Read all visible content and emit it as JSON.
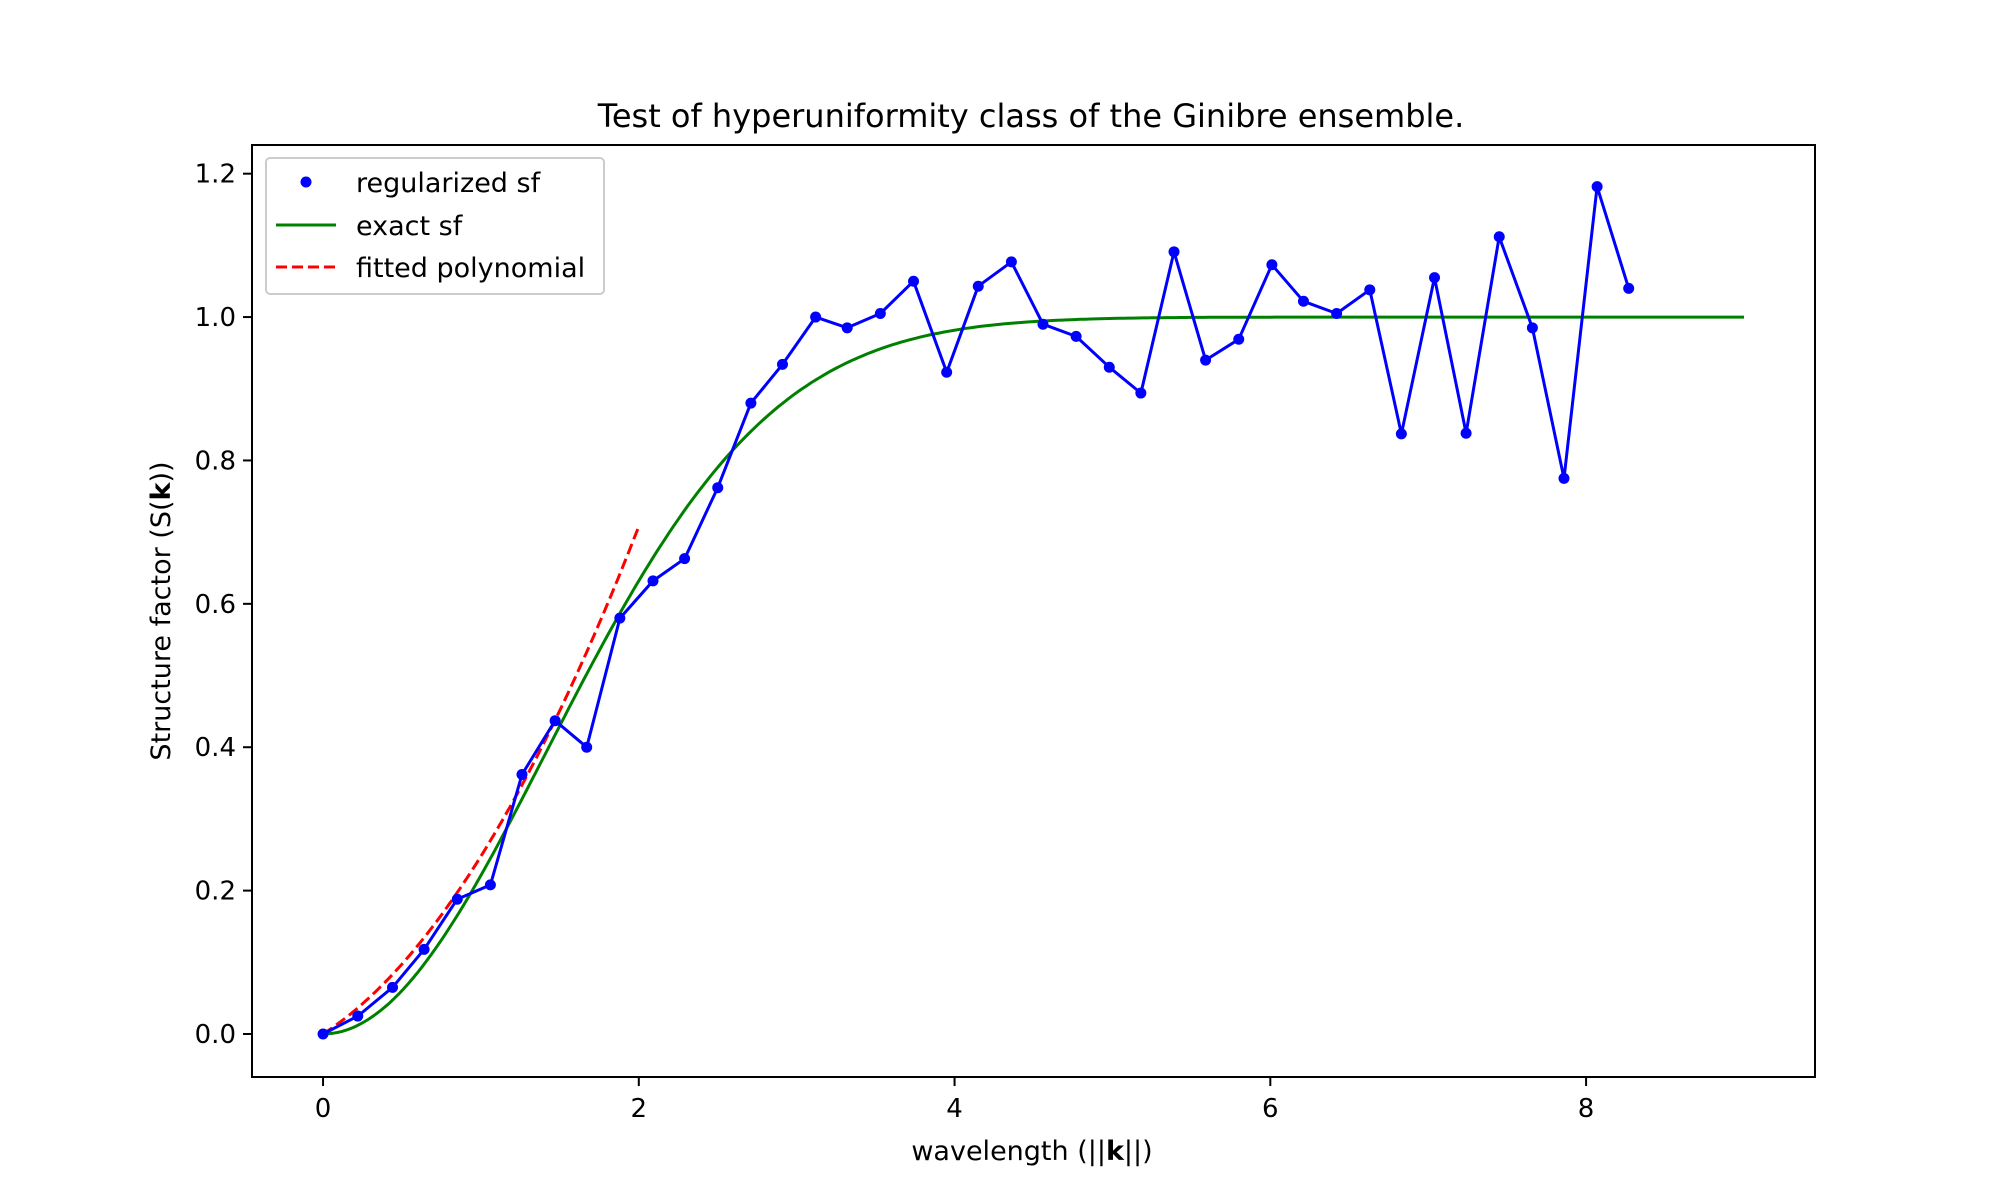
{
  "chart_data": {
    "type": "line",
    "title": "Test of hyperuniformity class of the Ginibre ensemble.",
    "xlabel": {
      "prefix": "wavelength (||",
      "bold": "k",
      "suffix": "||)"
    },
    "ylabel": {
      "prefix": "Structure factor (S(",
      "bold": "k",
      "suffix": "))"
    },
    "xlim": [
      -0.45,
      9.45
    ],
    "ylim": [
      -0.06,
      1.24
    ],
    "xticks": [
      0,
      2,
      4,
      6,
      8
    ],
    "xtick_labels": [
      "0",
      "2",
      "4",
      "6",
      "8"
    ],
    "yticks": [
      0.0,
      0.2,
      0.4,
      0.6,
      0.8,
      1.0,
      1.2
    ],
    "ytick_labels": [
      "0.0",
      "0.2",
      "0.4",
      "0.6",
      "0.8",
      "1.0",
      "1.2"
    ],
    "grid": false,
    "legend": {
      "placement": "top-left",
      "entries": [
        {
          "label": "regularized sf",
          "style": "marker",
          "color": "#0000ff"
        },
        {
          "label": "exact sf",
          "style": "solid",
          "color": "#008000"
        },
        {
          "label": "fitted polynomial",
          "style": "dashed",
          "color": "#ff0000"
        }
      ]
    },
    "series": [
      {
        "name": "regularized sf",
        "color": "#0000ff",
        "style": "line+marker",
        "x": [
          0.0,
          0.22,
          0.44,
          0.64,
          0.85,
          1.06,
          1.26,
          1.47,
          1.67,
          1.88,
          2.09,
          2.29,
          2.5,
          2.71,
          2.91,
          3.12,
          3.32,
          3.53,
          3.74,
          3.95,
          4.15,
          4.36,
          4.56,
          4.77,
          4.98,
          5.18,
          5.39,
          5.59,
          5.8,
          6.01,
          6.21,
          6.42,
          6.63,
          6.83,
          7.04,
          7.24,
          7.45,
          7.66,
          7.86,
          8.07,
          8.27
        ],
        "y": [
          0.0,
          0.025,
          0.065,
          0.118,
          0.188,
          0.208,
          0.362,
          0.437,
          0.4,
          0.58,
          0.632,
          0.663,
          0.762,
          0.88,
          0.934,
          1.0,
          0.985,
          1.005,
          1.05,
          0.923,
          1.043,
          1.077,
          0.99,
          0.973,
          0.93,
          0.894,
          1.091,
          0.94,
          0.969,
          1.073,
          1.022,
          1.005,
          1.038,
          0.837,
          1.055,
          0.838,
          1.112,
          0.985,
          0.775,
          1.182,
          1.04
        ]
      },
      {
        "name": "exact sf",
        "color": "#008000",
        "style": "solid",
        "function": "1 - exp(-x^2/4)",
        "x_range": [
          0,
          9
        ]
      },
      {
        "name": "fitted polynomial",
        "color": "#ff0000",
        "style": "dashed",
        "function": "0.142*x + 0.106*x^2",
        "x_range": [
          0,
          2
        ]
      }
    ]
  }
}
